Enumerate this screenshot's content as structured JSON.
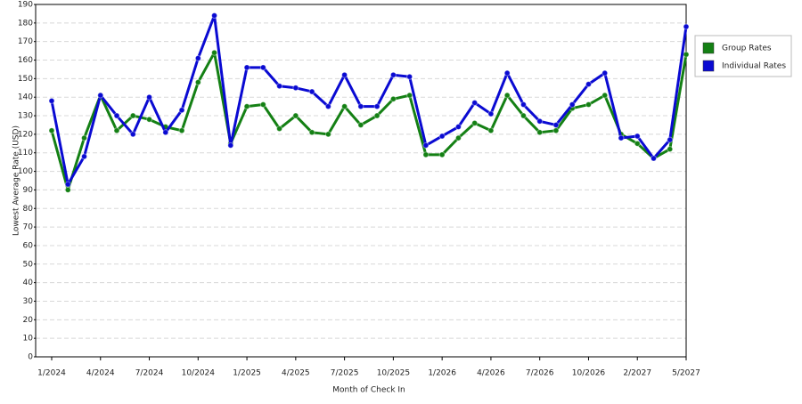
{
  "chart_data": {
    "type": "line",
    "x_label": "Month of Check In",
    "y_label": "Lowest Average Rate (USD)",
    "categories": [
      "1/2024",
      null,
      null,
      "4/2024",
      null,
      null,
      "7/2024",
      null,
      null,
      "10/2024",
      null,
      null,
      "1/2025",
      null,
      null,
      "4/2025",
      null,
      null,
      "7/2025",
      null,
      null,
      "10/2025",
      null,
      null,
      "1/2026",
      null,
      null,
      "4/2026",
      null,
      null,
      "7/2026",
      null,
      null,
      "10/2026",
      null,
      null,
      "2/2027",
      null,
      null,
      "5/2027"
    ],
    "series": [
      {
        "name": "Group Rates",
        "color": "#148014",
        "values": [
          122,
          90,
          118,
          141,
          122,
          130,
          128,
          124,
          122,
          148,
          164,
          115,
          135,
          136,
          123,
          130,
          121,
          120,
          135,
          125,
          130,
          139,
          141,
          109,
          109,
          118,
          126,
          122,
          141,
          130,
          121,
          122,
          134,
          136,
          141,
          120,
          115,
          107,
          112,
          163
        ]
      },
      {
        "name": "Individual Rates",
        "color": "#0a0ad2",
        "values": [
          138,
          93,
          108,
          141,
          130,
          120,
          140,
          121,
          133,
          161,
          184,
          114,
          156,
          156,
          146,
          145,
          143,
          135,
          152,
          135,
          135,
          152,
          151,
          114,
          119,
          124,
          137,
          131,
          153,
          136,
          127,
          125,
          136,
          147,
          153,
          118,
          119,
          107,
          117,
          178
        ]
      }
    ],
    "ylim": [
      0,
      190
    ],
    "yticks": [
      0,
      10,
      20,
      30,
      40,
      50,
      60,
      70,
      80,
      90,
      100,
      110,
      120,
      130,
      140,
      150,
      160,
      170,
      180,
      190
    ],
    "grid": true,
    "legend": "right"
  }
}
